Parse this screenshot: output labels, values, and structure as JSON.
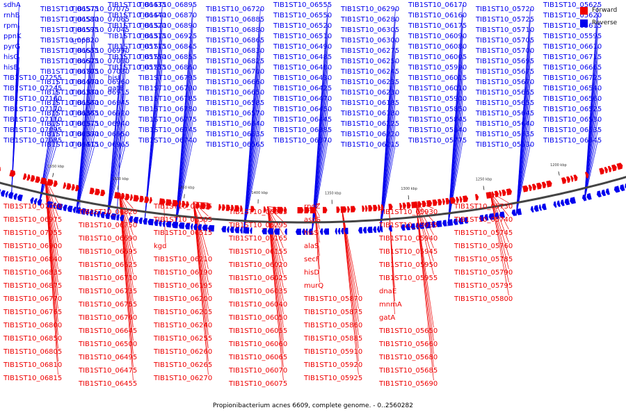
{
  "legend": [
    {
      "label": "Forward",
      "color": "#ee0000"
    },
    {
      "label": "Reverse",
      "color": "#0000ee"
    }
  ],
  "caption": "Propionibacterium acnes 6609, complete genome. - 0..2560282",
  "colors": {
    "forward": "#ee0000",
    "reverse": "#0000ee",
    "backbone": "#444444"
  },
  "scale_ticks": [
    "1550 kbp",
    "1500 kbp",
    "1450 kbp",
    "1400 kbp",
    "1350 kbp",
    "1300 kbp",
    "1250 kbp",
    "1200 kbp"
  ],
  "reverse_labels": [
    "sdhA",
    "rnhB",
    "rpmI",
    "ppnK",
    "pyrG",
    "hisG",
    "hisE",
    "TIB1ST10_07255",
    "TIB1ST10_07245",
    "TIB1ST10_07160",
    "TIB1ST10_07170",
    "TIB1ST10_07110",
    "TIB1ST10_07095",
    "TIB1ST10_07085",
    "TIB1ST10_07075",
    "TIB1ST10_07065",
    "TIB1ST10_07045",
    "smpB",
    "TIB1ST10_06990",
    "TIB1ST10_07090",
    "TIB1ST10_07080",
    "TIB1ST10_06960",
    "TIB1ST10_06915",
    "TIB1ST10_06945",
    "TIB1ST10_06920",
    "TIB1ST10_06940",
    "TIB1ST10_06950",
    "TIB1ST10_06965",
    "TIB1ST10_06895",
    "TIB1ST10_06870",
    "TIB1ST10_06890",
    "TIB1ST10_06925",
    "TIB1ST10_06845",
    "TIB1ST10_06855",
    "TIB1ST10_06860",
    "TIB1ST10_06795",
    "TIB1ST10_06790",
    "TIB1ST10_06785",
    "TIB1ST10_06780",
    "TIB1ST10_06775",
    "TIB1ST10_06745",
    "TIB1ST10_06740",
    "TIB1ST10_06720",
    "TIB1ST10_06885",
    "TIB1ST10_06880",
    "TIB1ST10_06865",
    "TIB1ST10_06830",
    "TIB1ST10_06825",
    "TIB1ST10_06700",
    "TIB1ST10_06660",
    "TIB1ST10_06650",
    "TIB1ST10_06585",
    "TIB1ST10_06570",
    "TIB1ST10_06640",
    "TIB1ST10_06635",
    "TIB1ST10_06565",
    "TIB1ST10_06555",
    "TIB1ST10_06550",
    "TIB1ST10_06520",
    "TIB1ST10_06510",
    "TIB1ST10_06490",
    "TIB1ST10_06485",
    "TIB1ST10_06480",
    "TIB1ST10_06430",
    "TIB1ST10_06425",
    "TIB1ST10_06470",
    "TIB1ST10_06450",
    "TIB1ST10_06445",
    "TIB1ST10_06385",
    "TIB1ST10_06370",
    "TIB1ST10_06290",
    "TIB1ST10_06280",
    "TIB1ST10_06305",
    "TIB1ST10_06300",
    "TIB1ST10_06275",
    "TIB1ST10_06250",
    "TIB1ST10_06245",
    "TIB1ST10_06235",
    "TIB1ST10_06230",
    "TIB1ST10_06185",
    "TIB1ST10_06180",
    "TIB1ST10_06225",
    "TIB1ST10_06220",
    "TIB1ST10_06215",
    "TIB1ST10_06170",
    "TIB1ST10_06160",
    "TIB1ST10_06175",
    "TIB1ST10_06090",
    "TIB1ST10_06080",
    "TIB1ST10_06005",
    "TIB1ST10_05990",
    "TIB1ST10_06015",
    "TIB1ST10_06010",
    "TIB1ST10_05900",
    "TIB1ST10_05850",
    "TIB1ST10_05845",
    "TIB1ST10_05840",
    "TIB1ST10_05775",
    "TIB1ST10_05720",
    "TIB1ST10_05725",
    "TIB1ST10_05710",
    "TIB1ST10_05705",
    "TIB1ST10_05700",
    "TIB1ST10_05695",
    "TIB1ST10_05675",
    "TIB1ST10_05670",
    "TIB1ST10_05665",
    "TIB1ST10_05655",
    "TIB1ST10_05645",
    "TIB1ST10_05640",
    "TIB1ST10_05635",
    "TIB1ST10_05630",
    "TIB1ST10_05625",
    "TIB1ST10_05620",
    "TIB1ST10_05615",
    "TIB1ST10_05595",
    "TIB1ST10_06610",
    "TIB1ST10_06715",
    "TIB1ST10_06665",
    "TIB1ST10_06725",
    "TIB1ST10_06540",
    "TIB1ST10_06560",
    "TIB1ST10_06525",
    "TIB1ST10_06530",
    "TIB1ST10_06535",
    "TIB1ST10_06545",
    "TIB1ST10_06575",
    "TIB1ST10_06580",
    "TIB1ST10_06595",
    "TIB1ST10_06620",
    "TIB1ST10_06655",
    "TIB1ST10_06675",
    "TIB1ST10_06705",
    "TIB1ST10_06400",
    "TIB1ST10_06380",
    "TIB1ST10_06360",
    "TIB1ST10_06365",
    "TIB1ST10_06375",
    "TIB1ST10_06390",
    "TIB1ST10_06415",
    "TIB1ST10_06435",
    "TIB1ST10_06440",
    "TIB1ST10_06320",
    "TIB1ST10_06315",
    "TIB1ST10_05715",
    "TIB1ST10_05750",
    "TIB1ST10_05755",
    "hisI",
    "gatB"
  ],
  "forward_labels": [
    "TIB1ST10_07050",
    "TIB1ST10_06975",
    "TIB1ST10_07055",
    "TIB1ST10_06900",
    "TIB1ST10_06840",
    "TIB1ST10_06835",
    "TIB1ST10_06875",
    "TIB1ST10_06770",
    "TIB1ST10_06765",
    "TIB1ST10_06800",
    "TIB1ST10_06850",
    "TIB1ST10_06805",
    "TIB1ST10_06810",
    "TIB1ST10_06815",
    "TIB1ST10_06820",
    "TIB1ST10_06750",
    "TIB1ST10_06690",
    "TIB1ST10_06695",
    "TIB1ST10_06625",
    "TIB1ST10_06710",
    "TIB1ST10_06735",
    "TIB1ST10_06755",
    "TIB1ST10_06760",
    "TIB1ST10_06645",
    "TIB1ST10_06500",
    "TIB1ST10_06495",
    "TIB1ST10_06475",
    "TIB1ST10_06455",
    "TIB1ST10_06465",
    "TIB1ST10_06505",
    "TIB1ST10_06515",
    "kgd",
    "TIB1ST10_06210",
    "TIB1ST10_06190",
    "TIB1ST10_06195",
    "TIB1ST10_06200",
    "TIB1ST10_06205",
    "TIB1ST10_06240",
    "TIB1ST10_06255",
    "TIB1ST10_06260",
    "TIB1ST10_06265",
    "TIB1ST10_06270",
    "TIB1ST10_06285",
    "TIB1ST10_06295",
    "TIB1ST10_06165",
    "TIB1ST10_06155",
    "TIB1ST10_06020",
    "TIB1ST10_06025",
    "TIB1ST10_06035",
    "TIB1ST10_06040",
    "TIB1ST10_06050",
    "TIB1ST10_06055",
    "TIB1ST10_06060",
    "TIB1ST10_06065",
    "TIB1ST10_06070",
    "TIB1ST10_06075",
    "rpoZ",
    "aspS",
    "hisS",
    "alaS",
    "secF",
    "hisD",
    "murQ",
    "TIB1ST10_05870",
    "TIB1ST10_05875",
    "TIB1ST10_05860",
    "TIB1ST10_05885",
    "TIB1ST10_05910",
    "TIB1ST10_05920",
    "TIB1ST10_05925",
    "TIB1ST10_05930",
    "TIB1ST10_05935",
    "TIB1ST10_05940",
    "TIB1ST10_05945",
    "TIB1ST10_05950",
    "TIB1ST10_05955",
    "dnaE",
    "mnmA",
    "gatA",
    "TIB1ST10_05650",
    "TIB1ST10_05660",
    "TIB1ST10_05680",
    "TIB1ST10_05685",
    "TIB1ST10_05690",
    "TIB1ST10_05730",
    "TIB1ST10_05740",
    "TIB1ST10_05745",
    "TIB1ST10_05760",
    "TIB1ST10_05785",
    "TIB1ST10_05790",
    "TIB1ST10_05795",
    "TIB1ST10_05800"
  ]
}
